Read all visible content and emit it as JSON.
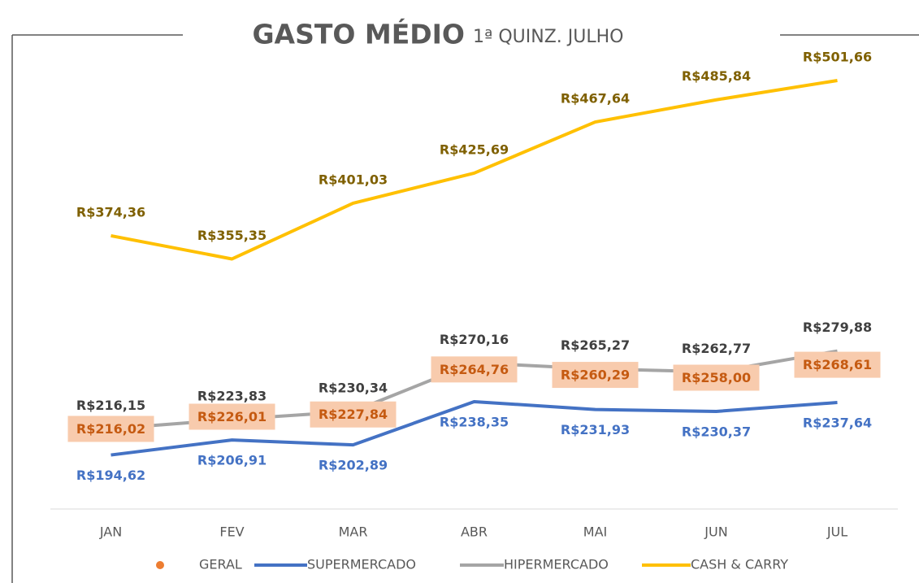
{
  "chart_data": {
    "type": "line",
    "title": "GASTO MÉDIO",
    "subtitle": "1ª QUINZ. JULHO",
    "categories": [
      "JAN",
      "FEV",
      "MAR",
      "ABR",
      "MAI",
      "JUN",
      "JUL"
    ],
    "ylim": [
      150,
      520
    ],
    "series": [
      {
        "name": "GERAL",
        "color": "#ed7d31",
        "values": [
          216.02,
          226.01,
          227.84,
          264.76,
          260.29,
          258.0,
          268.61
        ],
        "value_labels": [
          "R$216,02",
          "R$226,01",
          "R$227,84",
          "R$264,76",
          "R$260,29",
          "R$258,00",
          "R$268,61"
        ]
      },
      {
        "name": "SUPERMERCADO",
        "color": "#4472c4",
        "values": [
          194.62,
          206.91,
          202.89,
          238.35,
          231.93,
          230.37,
          237.64
        ],
        "value_labels": [
          "R$194,62",
          "R$206,91",
          "R$202,89",
          "R$238,35",
          "R$231,93",
          "R$230,37",
          "R$237,64"
        ]
      },
      {
        "name": "HIPERMERCADO",
        "color": "#a5a5a5",
        "values": [
          216.15,
          223.83,
          230.34,
          270.16,
          265.27,
          262.77,
          279.88
        ],
        "value_labels": [
          "R$216,15",
          "R$223,83",
          "R$230,34",
          "R$270,16",
          "R$265,27",
          "R$262,77",
          "R$279,88"
        ]
      },
      {
        "name": "CASH & CARRY",
        "color": "#ffc000",
        "values": [
          374.36,
          355.35,
          401.03,
          425.69,
          467.64,
          485.84,
          501.66
        ],
        "value_labels": [
          "R$374,36",
          "R$355,35",
          "R$401,03",
          "R$425,69",
          "R$467,64",
          "R$485,84",
          "R$501,66"
        ]
      }
    ]
  }
}
